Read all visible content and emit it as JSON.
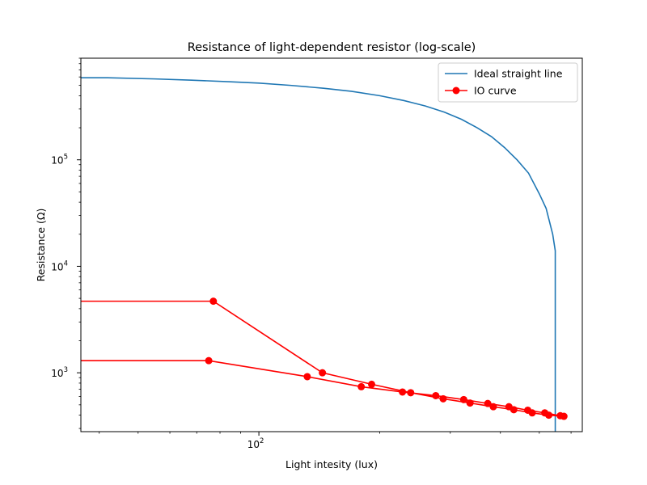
{
  "chart_data": {
    "type": "line",
    "title": "Resistance of light-dependent resistor (log-scale)",
    "xlabel": "Light intesity (lux)",
    "ylabel": "Resistance (Ω)",
    "x_scale": "log",
    "y_scale": "log",
    "xlim": [
      36,
      640
    ],
    "ylim": [
      280,
      900000
    ],
    "x_ticks": [
      {
        "value": 100,
        "base": "10",
        "exp": "2"
      }
    ],
    "y_ticks": [
      {
        "value": 1000,
        "base": "10",
        "exp": "3"
      },
      {
        "value": 10000,
        "base": "10",
        "exp": "4"
      },
      {
        "value": 100000,
        "base": "10",
        "exp": "5"
      }
    ],
    "legend_position": "upper right",
    "grid": false,
    "series": [
      {
        "name": "Ideal straight line",
        "color": "#1f77b4",
        "marker": "none",
        "x": [
          36,
          42,
          55,
          68,
          85,
          100,
          120,
          145,
          170,
          200,
          230,
          260,
          290,
          320,
          350,
          380,
          410,
          440,
          470,
          500,
          520,
          540,
          548,
          548
        ],
        "y": [
          590000,
          590000,
          575000,
          560000,
          540000,
          525000,
          500000,
          470000,
          440000,
          400000,
          360000,
          320000,
          280000,
          240000,
          200000,
          165000,
          130000,
          100000,
          75000,
          48000,
          35000,
          20000,
          14000,
          280
        ]
      },
      {
        "name": "IO curve",
        "color": "#ff0000",
        "marker": "circle",
        "x": [
          36,
          77,
          144,
          191,
          239,
          288,
          336,
          384,
          432,
          480,
          528,
          576,
          564,
          516,
          468,
          420,
          372,
          324,
          276,
          228,
          180,
          132,
          75,
          36
        ],
        "y": [
          4700,
          4700,
          1000,
          780,
          650,
          570,
          520,
          480,
          450,
          420,
          400,
          390,
          395,
          420,
          445,
          480,
          515,
          560,
          610,
          660,
          740,
          920,
          1300,
          1300
        ]
      }
    ]
  }
}
